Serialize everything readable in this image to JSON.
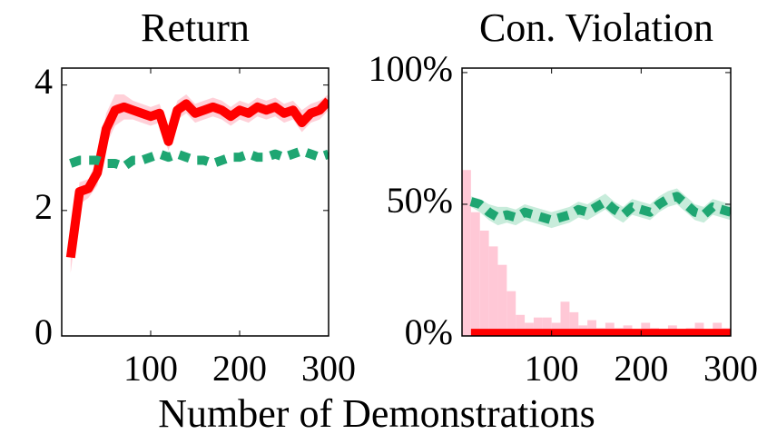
{
  "xlabel": "Number of Demonstrations",
  "chart_data": [
    {
      "type": "line",
      "title": "Return",
      "x": [
        10,
        20,
        30,
        40,
        50,
        60,
        70,
        80,
        90,
        100,
        110,
        120,
        130,
        140,
        150,
        160,
        170,
        180,
        190,
        200,
        210,
        220,
        230,
        240,
        250,
        260,
        270,
        280,
        290,
        300
      ],
      "xlim": [
        0,
        300
      ],
      "xticks": [
        100,
        200,
        300
      ],
      "ylim": [
        0,
        4.27
      ],
      "yticks": [
        0,
        2,
        4
      ],
      "series": [
        {
          "color": "#ff0000",
          "band_color": "#ffc0cb",
          "dashed": false,
          "values": [
            1.25,
            2.3,
            2.35,
            2.6,
            3.3,
            3.6,
            3.65,
            3.6,
            3.55,
            3.5,
            3.55,
            3.1,
            3.6,
            3.7,
            3.55,
            3.6,
            3.65,
            3.6,
            3.5,
            3.6,
            3.55,
            3.65,
            3.6,
            3.65,
            3.55,
            3.6,
            3.4,
            3.55,
            3.6,
            3.75
          ],
          "upper": [
            1.4,
            2.45,
            2.5,
            2.8,
            3.55,
            3.85,
            3.85,
            3.75,
            3.7,
            3.65,
            3.7,
            3.3,
            3.75,
            3.85,
            3.7,
            3.75,
            3.8,
            3.75,
            3.65,
            3.75,
            3.7,
            3.8,
            3.75,
            3.8,
            3.7,
            3.75,
            3.6,
            3.7,
            3.75,
            3.85
          ],
          "lower": [
            1.0,
            2.1,
            2.2,
            2.4,
            3.05,
            3.35,
            3.45,
            3.45,
            3.4,
            3.35,
            3.4,
            2.95,
            3.45,
            3.55,
            3.4,
            3.45,
            3.5,
            3.45,
            3.35,
            3.45,
            3.4,
            3.5,
            3.45,
            3.5,
            3.4,
            3.45,
            3.25,
            3.4,
            3.45,
            3.6
          ]
        },
        {
          "color": "#1fa672",
          "band_color": "#b6e6cf",
          "dashed": true,
          "values": [
            2.75,
            2.8,
            2.8,
            2.8,
            2.75,
            2.75,
            2.7,
            2.8,
            2.8,
            2.85,
            2.9,
            2.85,
            2.9,
            2.85,
            2.8,
            2.8,
            2.75,
            2.8,
            2.85,
            2.85,
            2.9,
            2.85,
            2.85,
            2.9,
            2.85,
            2.9,
            2.95,
            2.9,
            2.85,
            2.9
          ]
        }
      ]
    },
    {
      "type": "line",
      "title": "Con. Violation",
      "x": [
        10,
        20,
        30,
        40,
        50,
        60,
        70,
        80,
        90,
        100,
        110,
        120,
        130,
        140,
        150,
        160,
        170,
        180,
        190,
        200,
        210,
        220,
        230,
        240,
        250,
        260,
        270,
        280,
        290,
        300
      ],
      "xlim": [
        0,
        300
      ],
      "xticks": [
        100,
        200,
        300
      ],
      "ylim": [
        0,
        101.7
      ],
      "yticks": [
        {
          "value": 0,
          "label": "0%"
        },
        {
          "value": 50,
          "label": "50%"
        },
        {
          "value": 100,
          "label": "100%"
        }
      ],
      "histogram": {
        "color": "#ffc8d6",
        "bins": [
          0,
          10,
          20,
          30,
          40,
          50,
          60,
          70,
          80,
          90,
          100,
          110,
          120,
          130,
          140,
          150,
          160,
          170,
          180,
          190,
          200,
          210,
          220,
          230,
          240,
          250,
          260,
          270,
          280,
          290,
          300
        ],
        "values": [
          63,
          47,
          40,
          34,
          27,
          17,
          8,
          5,
          7,
          7,
          5,
          13,
          9,
          4,
          6,
          3,
          5,
          3,
          4,
          2,
          5,
          3,
          2,
          4,
          2,
          3,
          5,
          2,
          5,
          3
        ]
      },
      "series": [
        {
          "color": "#1fa672",
          "band_color": "#b6e6cf",
          "dashed": true,
          "values": [
            51,
            50,
            47,
            45,
            46,
            45,
            47,
            46,
            45,
            44,
            45,
            46,
            48,
            47,
            49,
            51,
            48,
            46,
            49,
            48,
            47,
            50,
            52,
            53,
            50,
            47,
            46,
            49,
            48,
            47
          ],
          "upper": [
            53,
            52,
            50,
            49,
            49,
            48,
            50,
            49,
            48,
            47,
            48,
            49,
            51,
            50,
            52,
            54,
            51,
            49,
            52,
            51,
            50,
            53,
            55,
            56,
            53,
            50,
            49,
            52,
            51,
            50
          ],
          "lower": [
            49,
            47,
            44,
            42,
            43,
            42,
            44,
            43,
            42,
            41,
            42,
            43,
            45,
            44,
            46,
            48,
            45,
            43,
            46,
            45,
            44,
            47,
            49,
            50,
            47,
            44,
            43,
            46,
            45,
            44
          ]
        },
        {
          "color": "#ff0000",
          "dashed": false,
          "values": [
            1,
            1,
            1,
            1,
            1,
            1,
            1,
            1,
            1,
            1,
            1,
            1,
            1,
            1,
            1,
            1,
            1,
            1,
            1,
            1,
            1,
            1,
            1,
            1,
            1,
            1,
            1,
            1,
            1,
            1
          ]
        }
      ]
    }
  ]
}
